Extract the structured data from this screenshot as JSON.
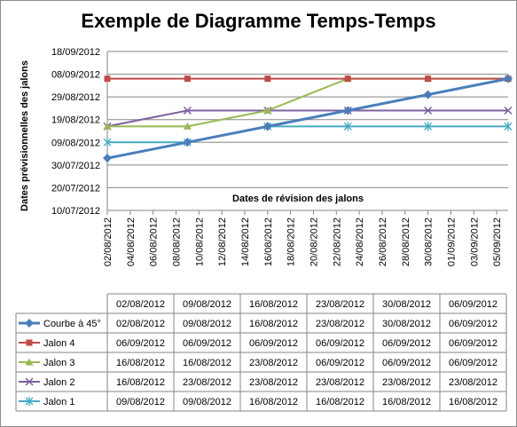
{
  "chart_data": {
    "type": "line",
    "title": "Exemple de Diagramme Temps-Temps",
    "xlabel": "Dates de révision des jalons",
    "ylabel": "Dates prévisionnelles des jalons",
    "y_ticks": [
      "10/07/2012",
      "20/07/2012",
      "30/07/2012",
      "09/08/2012",
      "19/08/2012",
      "29/08/2012",
      "08/09/2012",
      "18/09/2012"
    ],
    "ylim": [
      "10/07/2012",
      "18/09/2012"
    ],
    "x_tick_labels": [
      "02/08/2012",
      "04/08/2012",
      "06/08/2012",
      "08/08/2012",
      "10/08/2012",
      "12/08/2012",
      "14/08/2012",
      "16/08/2012",
      "18/08/2012",
      "20/08/2012",
      "22/08/2012",
      "24/08/2012",
      "26/08/2012",
      "28/08/2012",
      "30/08/2012",
      "01/09/2012",
      "03/09/2012",
      "05/09/2012"
    ],
    "xlim": [
      "02/08/2012",
      "06/09/2012"
    ],
    "grid": "horizontal",
    "legend": "left (data table)",
    "x": [
      "02/08/2012",
      "09/08/2012",
      "16/08/2012",
      "23/08/2012",
      "30/08/2012",
      "06/09/2012"
    ],
    "series": [
      {
        "name": "Courbe à 45°",
        "color": "#4a7ebb",
        "marker": "diamond",
        "values": [
          "02/08/2012",
          "09/08/2012",
          "16/08/2012",
          "23/08/2012",
          "30/08/2012",
          "06/09/2012"
        ]
      },
      {
        "name": "Jalon 4",
        "color": "#be4b48",
        "marker": "square",
        "values": [
          "06/09/2012",
          "06/09/2012",
          "06/09/2012",
          "06/09/2012",
          "06/09/2012",
          "06/09/2012"
        ]
      },
      {
        "name": "Jalon 3",
        "color": "#98b954",
        "marker": "triangle",
        "values": [
          "16/08/2012",
          "16/08/2012",
          "23/08/2012",
          "06/09/2012",
          "06/09/2012",
          "06/09/2012"
        ]
      },
      {
        "name": "Jalon 2",
        "color": "#7d60a0",
        "marker": "x",
        "values": [
          "16/08/2012",
          "23/08/2012",
          "23/08/2012",
          "23/08/2012",
          "23/08/2012",
          "23/08/2012"
        ]
      },
      {
        "name": "Jalon 1",
        "color": "#46aac5",
        "marker": "star",
        "values": [
          "09/08/2012",
          "09/08/2012",
          "16/08/2012",
          "16/08/2012",
          "16/08/2012",
          "16/08/2012"
        ]
      }
    ]
  }
}
